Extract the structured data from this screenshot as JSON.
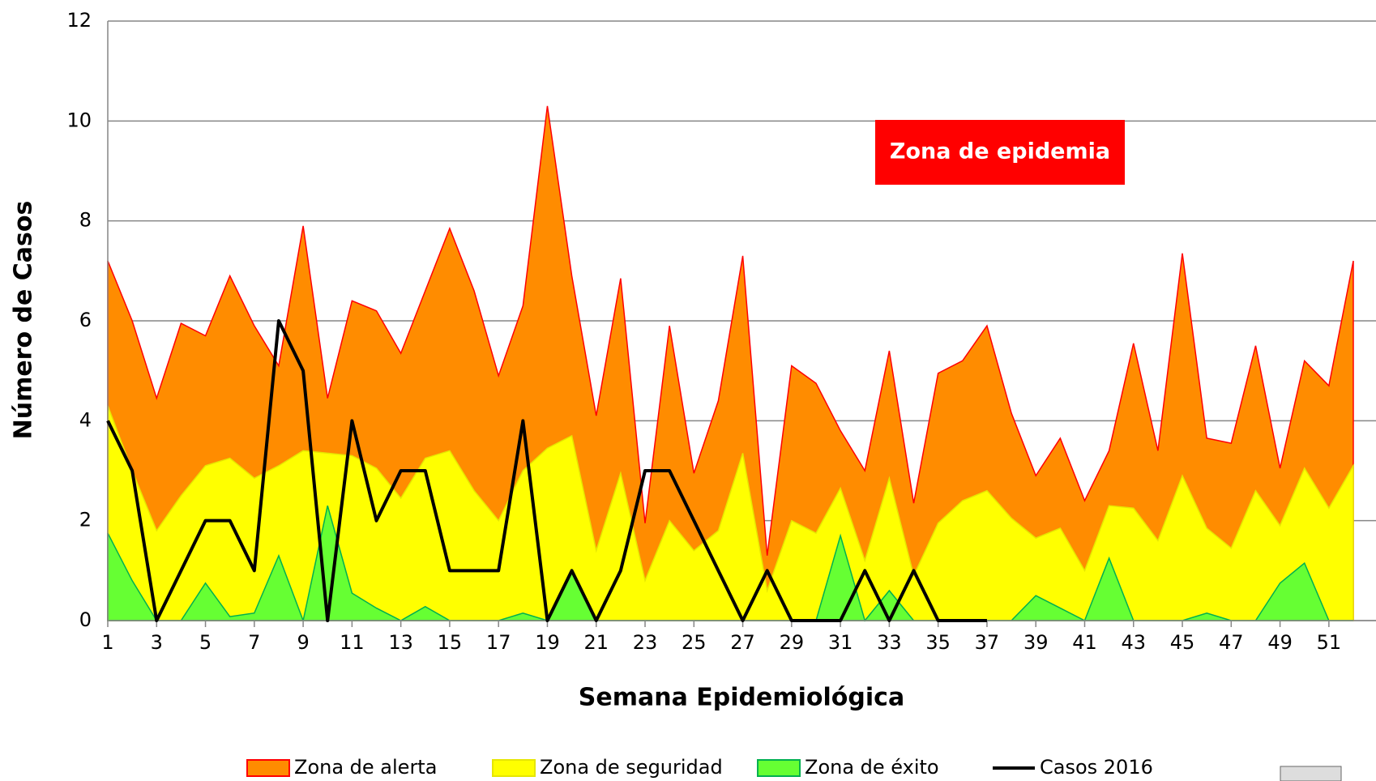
{
  "chart_data": {
    "type": "area",
    "x_label": "Semana Epidemiológica",
    "y_label": "Número de Casos",
    "annotation": "Zona de epidemia",
    "x": [
      1,
      2,
      3,
      4,
      5,
      6,
      7,
      8,
      9,
      10,
      11,
      12,
      13,
      14,
      15,
      16,
      17,
      18,
      19,
      20,
      21,
      22,
      23,
      24,
      25,
      26,
      27,
      28,
      29,
      30,
      31,
      32,
      33,
      34,
      35,
      36,
      37,
      38,
      39,
      40,
      41,
      42,
      43,
      44,
      45,
      46,
      47,
      48,
      49,
      50,
      51,
      52
    ],
    "xlim": [
      1,
      52
    ],
    "xticks": [
      1,
      3,
      5,
      7,
      9,
      11,
      13,
      15,
      17,
      19,
      21,
      23,
      25,
      27,
      29,
      31,
      33,
      35,
      37,
      39,
      41,
      43,
      45,
      47,
      49,
      51
    ],
    "ylim": [
      0,
      12
    ],
    "yticks": [
      0,
      2,
      4,
      6,
      8,
      10,
      12
    ],
    "grid": true,
    "series": [
      {
        "name": "Zona de alerta",
        "type": "area",
        "color": "#ff8c00",
        "edgecolor": "#ff0000",
        "values": [
          7.2,
          6.0,
          4.45,
          5.95,
          5.7,
          6.9,
          5.9,
          5.1,
          7.9,
          4.45,
          6.4,
          6.2,
          5.35,
          6.6,
          7.85,
          6.6,
          4.9,
          6.3,
          10.3,
          6.9,
          4.1,
          6.85,
          1.95,
          5.9,
          2.95,
          4.4,
          7.3,
          1.3,
          5.1,
          4.75,
          3.8,
          3.0,
          5.4,
          2.35,
          4.95,
          5.2,
          5.9,
          4.15,
          2.9,
          3.65,
          2.4,
          3.4,
          5.55,
          3.4,
          7.35,
          3.65,
          3.55,
          5.5,
          3.05,
          5.2,
          4.7,
          7.2
        ]
      },
      {
        "name": "Zona de seguridad",
        "type": "area",
        "color": "#ffff00",
        "edgecolor": "#e6e600",
        "values": [
          4.3,
          3.0,
          1.8,
          2.5,
          3.1,
          3.25,
          2.85,
          3.1,
          3.4,
          3.35,
          3.3,
          3.05,
          2.45,
          3.25,
          3.4,
          2.6,
          2.0,
          3.0,
          3.45,
          3.7,
          1.4,
          2.95,
          0.8,
          2.0,
          1.4,
          1.8,
          3.35,
          0.6,
          2.0,
          1.75,
          2.65,
          1.2,
          2.85,
          0.9,
          1.95,
          2.4,
          2.6,
          2.05,
          1.65,
          1.85,
          1.0,
          2.3,
          2.25,
          1.6,
          2.9,
          1.85,
          1.45,
          2.6,
          1.9,
          3.05,
          2.25,
          3.1
        ]
      },
      {
        "name": "Zona de éxito",
        "type": "area",
        "color": "#66ff33",
        "edgecolor": "#00b050",
        "values": [
          1.75,
          0.8,
          0,
          0,
          0.75,
          0.08,
          0.15,
          1.3,
          0,
          2.3,
          0.55,
          0.25,
          0,
          0.28,
          0,
          0,
          0,
          0.15,
          0,
          1.0,
          0,
          0,
          0,
          0,
          0,
          0,
          0,
          0,
          0,
          0,
          1.7,
          0,
          0.6,
          0,
          0,
          0,
          0,
          0,
          0.5,
          0.25,
          0,
          1.25,
          0,
          0,
          0,
          0.15,
          0,
          0,
          0.75,
          1.15,
          0,
          0
        ]
      },
      {
        "name": "Casos 2016",
        "type": "line",
        "color": "#000000",
        "values": [
          4,
          3,
          0,
          1,
          2,
          2,
          1,
          6,
          5,
          0,
          4,
          2,
          3,
          3,
          1,
          1,
          1,
          4,
          0,
          1,
          0,
          1,
          3,
          3,
          2,
          1,
          0,
          1,
          0,
          0,
          0,
          1,
          0,
          1,
          0,
          0,
          0,
          null,
          null,
          null,
          null,
          null,
          null,
          null,
          null,
          null,
          null,
          null,
          null,
          null,
          null,
          null
        ]
      }
    ]
  }
}
